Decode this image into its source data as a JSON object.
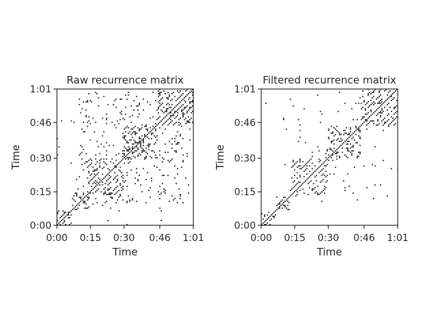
{
  "chart_data": [
    {
      "type": "heatmap",
      "title": "Raw recurrence matrix",
      "xlabel": "Time",
      "ylabel": "Time",
      "xlim": [
        0,
        61
      ],
      "ylim": [
        0,
        61
      ],
      "x_ticks": [
        0,
        15,
        30,
        46,
        61
      ],
      "x_tick_labels": [
        "0:00",
        "0:15",
        "0:30",
        "0:46",
        "1:01"
      ],
      "y_ticks": [
        0,
        15,
        30,
        46,
        61
      ],
      "y_tick_labels": [
        "0:00",
        "0:15",
        "0:30",
        "0:46",
        "1:01"
      ],
      "grid": false,
      "colors": {
        "point": "#000000",
        "background": "#ffffff"
      },
      "blocks": [
        {
          "start": 0,
          "end": 7,
          "style": "circles",
          "density": 0.5
        },
        {
          "start": 7,
          "end": 15,
          "style": "circles",
          "density": 0.55
        },
        {
          "start": 14,
          "end": 30,
          "style": "diagonals",
          "density": 0.5
        },
        {
          "start": 30,
          "end": 45,
          "style": "circles",
          "density": 0.45
        },
        {
          "start": 45,
          "end": 61,
          "style": "diagonals",
          "density": 0.65
        }
      ],
      "off_diagonal_regions": [
        {
          "x": [
            10,
            60
          ],
          "y": [
            10,
            60
          ],
          "density": 0.035
        },
        {
          "x": [
            0,
            15
          ],
          "y": [
            15,
            61
          ],
          "density": 0.004
        },
        {
          "x": [
            15,
            61
          ],
          "y": [
            0,
            15
          ],
          "density": 0.004
        }
      ]
    },
    {
      "type": "heatmap",
      "title": "Filtered recurrence matrix",
      "xlabel": "Time",
      "ylabel": "Time",
      "xlim": [
        0,
        61
      ],
      "ylim": [
        0,
        61
      ],
      "x_ticks": [
        0,
        15,
        30,
        46,
        61
      ],
      "x_tick_labels": [
        "0:00",
        "0:15",
        "0:30",
        "0:46",
        "1:01"
      ],
      "y_ticks": [
        0,
        15,
        30,
        46,
        61
      ],
      "y_tick_labels": [
        "0:00",
        "0:15",
        "0:30",
        "0:46",
        "1:01"
      ],
      "grid": false,
      "colors": {
        "point": "#000000",
        "background": "#ffffff"
      },
      "blocks": [
        {
          "start": 0,
          "end": 7,
          "style": "circles",
          "density": 0.35
        },
        {
          "start": 7,
          "end": 13,
          "style": "circles",
          "density": 0.4
        },
        {
          "start": 14,
          "end": 30,
          "style": "diagonals",
          "density": 0.55
        },
        {
          "start": 30,
          "end": 45,
          "style": "circles",
          "density": 0.45
        },
        {
          "start": 45,
          "end": 61,
          "style": "diagonals",
          "density": 0.6
        }
      ],
      "off_diagonal_regions": [
        {
          "x": [
            10,
            60
          ],
          "y": [
            10,
            60
          ],
          "density": 0.008
        },
        {
          "x": [
            0,
            61
          ],
          "y": [
            0,
            61
          ],
          "density": 0.001
        }
      ]
    }
  ]
}
